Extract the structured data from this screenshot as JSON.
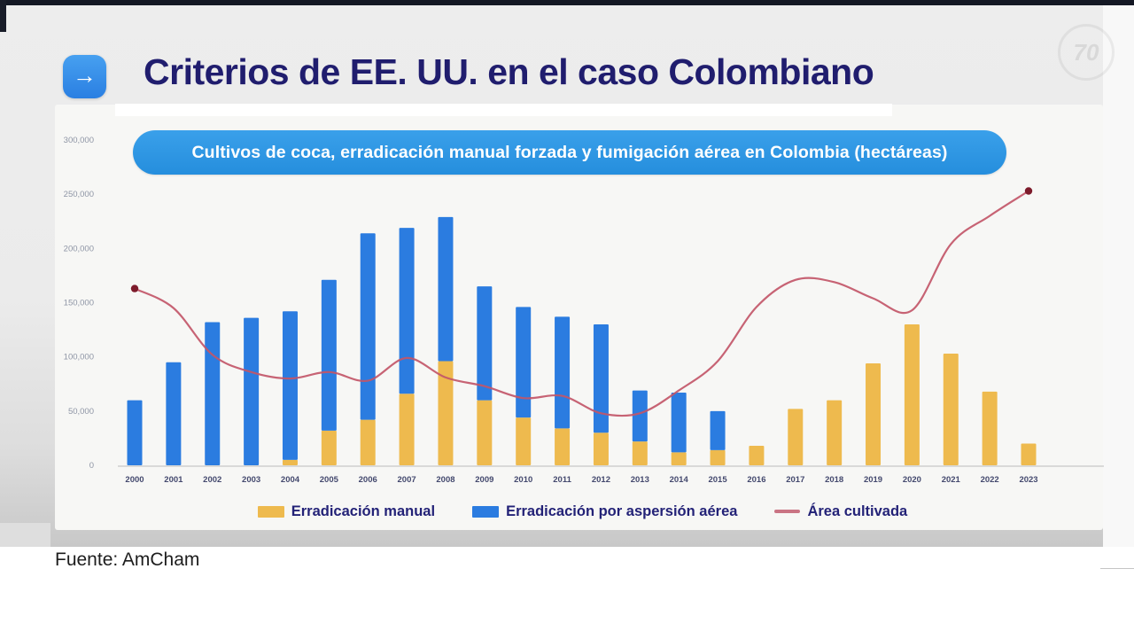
{
  "slide": {
    "arrow_icon": "→",
    "title": "Criterios de EE. UU. en el caso Colombiano",
    "banner": "Cultivos de coca, erradicación manual forzada y fumigación aérea en Colombia (hectáreas)",
    "watermark_text": "70",
    "source_note": "Fuente: AmCham",
    "colors": {
      "title_navy": "#201d6e",
      "banner_blue": "#2e96e4",
      "bar_yellow": "#eeba4e",
      "bar_blue": "#2b7ce0",
      "line_red": "#c25668",
      "legend_text": "#232277",
      "top_bar": "#141824"
    }
  },
  "chart_data": {
    "type": "bar",
    "subtype": "stacked-bar-with-line",
    "title": "Cultivos de coca, erradicación manual forzada y fumigación aérea en Colombia (hectáreas)",
    "categories": [
      "2000",
      "2001",
      "2002",
      "2003",
      "2004",
      "2005",
      "2006",
      "2007",
      "2008",
      "2009",
      "2010",
      "2011",
      "2012",
      "2013",
      "2014",
      "2015",
      "2016",
      "2017",
      "2018",
      "2019",
      "2020",
      "2021",
      "2022",
      "2023"
    ],
    "series": [
      {
        "name": "Erradicación manual",
        "kind": "bar",
        "stack": "erradicacion",
        "color": "#eeba4e",
        "values": [
          0,
          0,
          0,
          0,
          5000,
          32000,
          42000,
          66000,
          96000,
          60000,
          44000,
          34000,
          30000,
          22000,
          12000,
          14000,
          18000,
          52000,
          60000,
          94000,
          130000,
          103000,
          68000,
          20000
        ]
      },
      {
        "name": "Erradicación por aspersión aérea",
        "kind": "bar",
        "stack": "erradicacion",
        "color": "#2b7ce0",
        "values": [
          60000,
          95000,
          132000,
          136000,
          137000,
          139000,
          172000,
          153000,
          133000,
          105000,
          102000,
          103000,
          100000,
          47000,
          55000,
          36000,
          0,
          0,
          0,
          0,
          0,
          0,
          0,
          0
        ]
      },
      {
        "name": "Área cultivada",
        "kind": "line",
        "color": "#c25668",
        "point_color": "#7d1b2b",
        "values": [
          163000,
          145000,
          102000,
          86000,
          80000,
          86000,
          78000,
          99000,
          81000,
          73000,
          62000,
          64000,
          48000,
          48000,
          69000,
          96000,
          146000,
          171000,
          169000,
          154000,
          143000,
          204000,
          230000,
          253000
        ]
      }
    ],
    "xlabel": "",
    "ylabel": "",
    "ylim": [
      0,
      300000
    ],
    "y_ticks": [
      "0",
      "50,000",
      "100,000",
      "150,000",
      "200,000",
      "250,000",
      "300,000"
    ],
    "grid": false,
    "legend_position": "bottom"
  }
}
